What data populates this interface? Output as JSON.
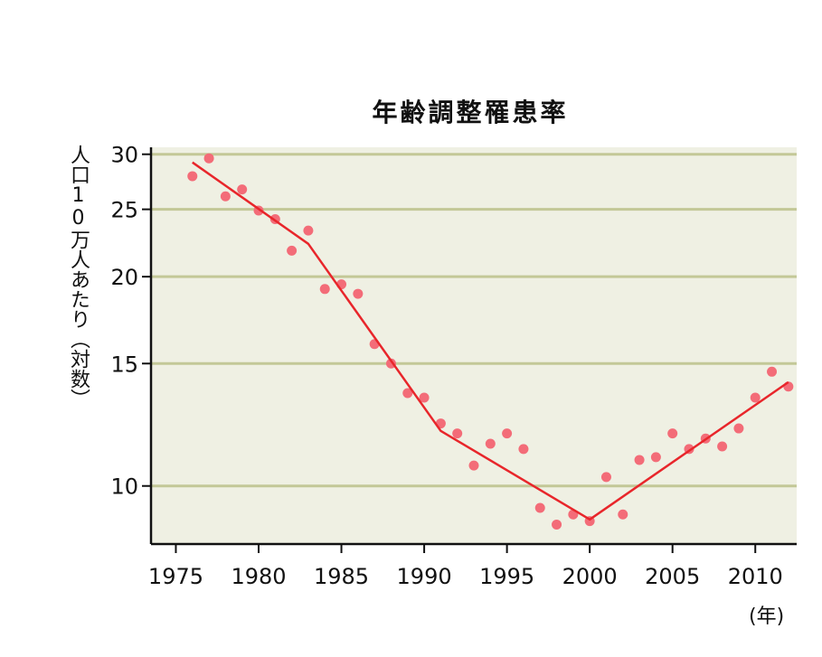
{
  "chart_data": {
    "type": "scatter",
    "title": "年齢調整罹患率",
    "ylabel": "人口10万人あたり（対数）",
    "xunit": "(年)",
    "yscale": "log",
    "xlim": [
      1973.5,
      2012.5
    ],
    "ylim": [
      8.25,
      30.7
    ],
    "xticks": [
      1975,
      1980,
      1985,
      1990,
      1995,
      2000,
      2005,
      2010
    ],
    "yticks": [
      10,
      15,
      20,
      25,
      30
    ],
    "grid": true,
    "colors": {
      "plot_bg": "#eff0e3",
      "grid": "#c3c897",
      "points": "#f36c78",
      "trend": "#e8262b"
    },
    "series": [
      {
        "kind": "points",
        "x": [
          1976,
          1977,
          1978,
          1979,
          1980,
          1981,
          1982,
          1983,
          1984,
          1985,
          1986,
          1987,
          1988,
          1989,
          1990,
          1991,
          1992,
          1993,
          1994,
          1995,
          1996,
          1997,
          1998,
          1999,
          2000,
          2001,
          2002,
          2003,
          2004,
          2005,
          2006,
          2007,
          2008,
          2009,
          2010,
          2011,
          2012
        ],
        "y": [
          27.9,
          29.6,
          26.1,
          26.7,
          24.9,
          24.2,
          21.8,
          23.3,
          19.2,
          19.5,
          18.9,
          16.0,
          15.0,
          13.6,
          13.4,
          12.3,
          11.9,
          10.7,
          11.5,
          11.9,
          11.3,
          9.3,
          8.8,
          9.1,
          8.9,
          10.3,
          9.1,
          10.9,
          11.0,
          11.9,
          11.3,
          11.7,
          11.4,
          12.1,
          13.4,
          14.6,
          13.9
        ]
      },
      {
        "kind": "trend",
        "x": [
          1976,
          1983,
          1991,
          2000,
          2012
        ],
        "y": [
          29.2,
          22.3,
          12.0,
          8.95,
          14.1
        ]
      }
    ]
  }
}
